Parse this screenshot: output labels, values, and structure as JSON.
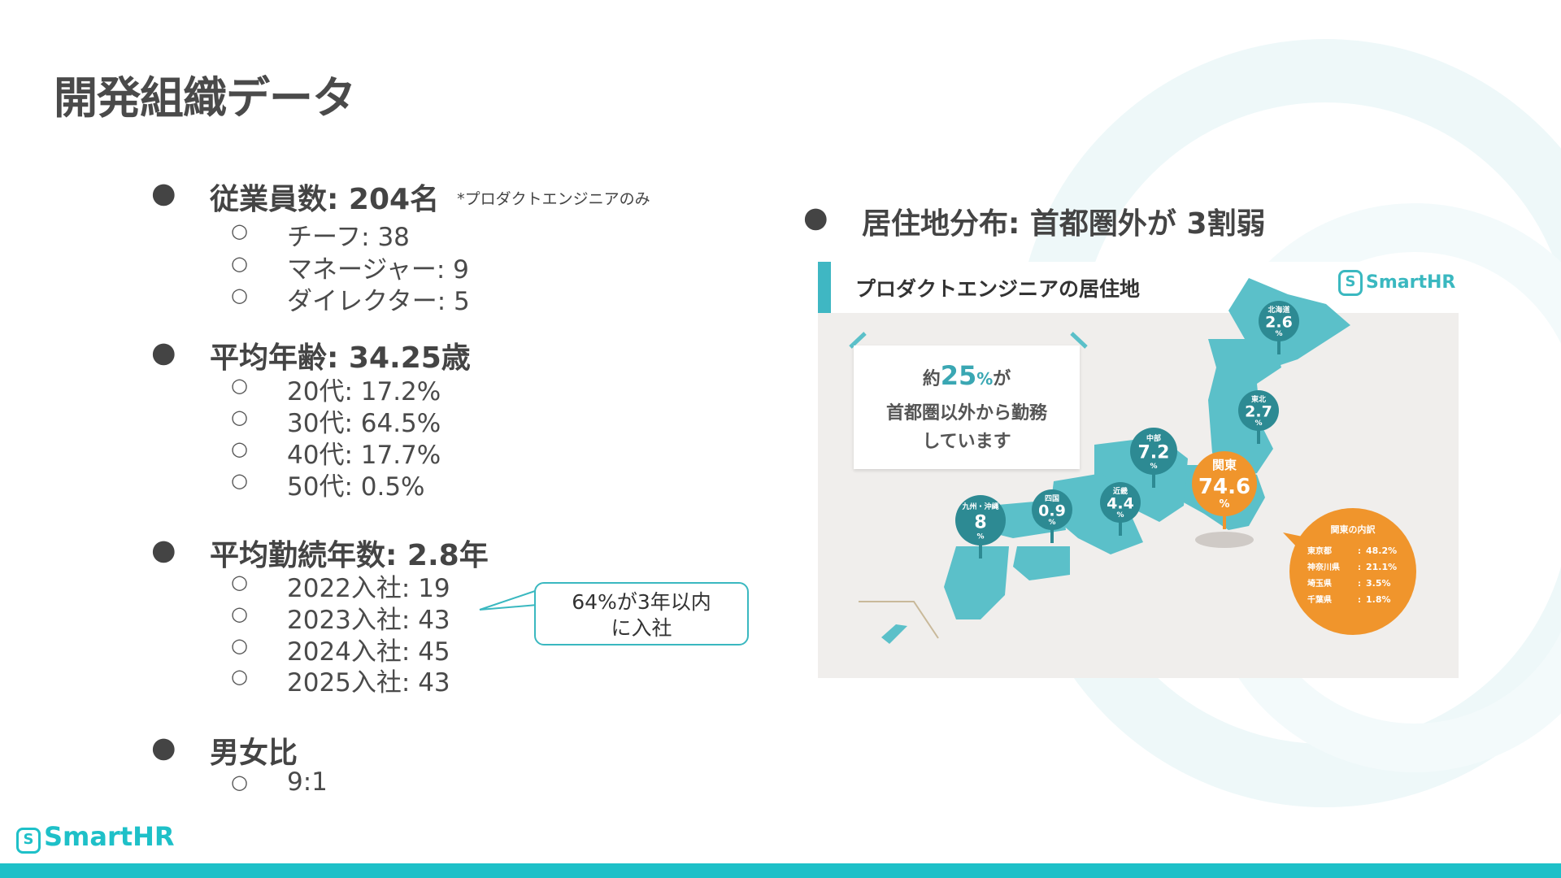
{
  "title": "開発組織データ",
  "left": {
    "sections": [
      {
        "heading": "従業員数: 204名",
        "note": "*プロダクトエンジニアのみ",
        "items": [
          "チーフ: 38",
          "マネージャー: 9",
          "ダイレクター: 5"
        ]
      },
      {
        "heading": "平均年齢: 34.25歳",
        "items": [
          "20代:  17.2%",
          "30代:  64.5%",
          "40代:  17.7%",
          "50代:   0.5%"
        ]
      },
      {
        "heading": "平均勤続年数: 2.8年",
        "items": [
          "2022入社: 19",
          "2023入社: 43",
          "2024入社: 45",
          "2025入社: 43"
        ]
      },
      {
        "heading": "男女比",
        "items": [
          "9:1"
        ]
      }
    ],
    "callout": {
      "line1": "64%が3年以内",
      "line2": "に入社"
    }
  },
  "right": {
    "heading": "居住地分布: 首都圏外が 3割弱",
    "map": {
      "title": "プロダクトエンジニアの居住地",
      "logo": "SmartHR",
      "note": {
        "pre": "約",
        "big": "25",
        "pct": "%",
        "post": "が",
        "line2": "首都圏以外から勤務",
        "line3": "しています"
      },
      "regions": [
        {
          "name": "北海道",
          "value": "2.6",
          "unit": "%",
          "color": "#2d8a93"
        },
        {
          "name": "東北",
          "value": "2.7",
          "unit": "%",
          "color": "#2d8a93"
        },
        {
          "name": "中部",
          "value": "7.2",
          "unit": "%",
          "color": "#2d8a93"
        },
        {
          "name": "関東",
          "value": "74.6",
          "unit": "%",
          "color": "#f0952c"
        },
        {
          "name": "近畿",
          "value": "4.4",
          "unit": "%",
          "color": "#2d8a93"
        },
        {
          "name": "四国",
          "value": "0.9",
          "unit": "%",
          "color": "#2d8a93"
        },
        {
          "name": "九州・沖縄",
          "value": "8",
          "unit": "%",
          "color": "#2d8a93"
        }
      ],
      "kanto_breakdown": {
        "title": "関東の内訳",
        "items": [
          {
            "name": "東京都",
            "value": "48.2%"
          },
          {
            "name": "神奈川県",
            "value": "21.1%"
          },
          {
            "name": "埼玉県",
            "value": "3.5%"
          },
          {
            "name": "千葉県",
            "value": "1.8%"
          }
        ]
      }
    }
  },
  "footer": {
    "logo": "SmartHR",
    "logo_mark": "S"
  },
  "colors": {
    "accent": "#1ec0c8",
    "map_teal": "#5bc0c9",
    "kanto_orange": "#f0952c"
  }
}
